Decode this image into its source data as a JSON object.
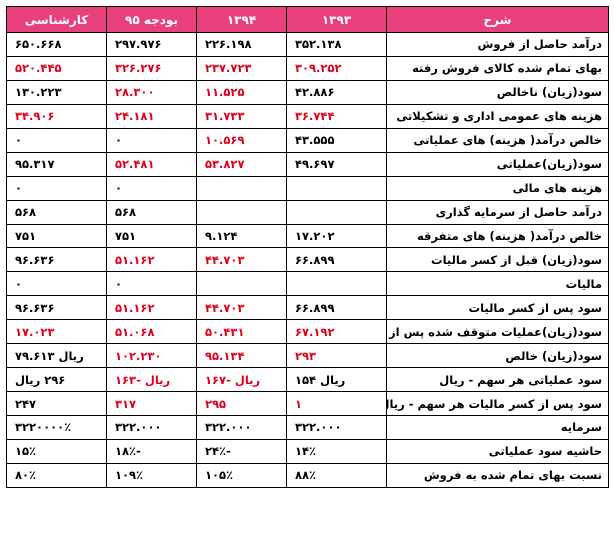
{
  "headers": [
    "شرح",
    "۱۳۹۳",
    "۱۳۹۴",
    "بودجه ۹۵",
    "کارشناسی"
  ],
  "rows": [
    {
      "label": "درآمد حاصل از فروش",
      "v1": "۳۵۲.۱۳۸",
      "v2": "۲۲۶.۱۹۸",
      "v3": "۲۹۷.۹۷۶",
      "v4": "۶۵۰.۶۶۸",
      "neg": [
        false,
        false,
        false,
        false
      ]
    },
    {
      "label": "بهای تمام شده کالای فروش رفته",
      "v1": "۳۰۹.۲۵۲",
      "v2": "۲۳۷.۷۲۳",
      "v3": "۳۲۶.۲۷۶",
      "v4": "۵۲۰.۴۴۵",
      "neg": [
        true,
        true,
        true,
        true
      ]
    },
    {
      "label": "سود(زیان) ناخالص",
      "v1": "۴۲.۸۸۶",
      "v2": "۱۱.۵۲۵",
      "v3": "۲۸.۳۰۰",
      "v4": "۱۳۰.۲۲۳",
      "neg": [
        false,
        true,
        true,
        false
      ]
    },
    {
      "label": "هزینه های عمومی اداری و تشکیلاتی",
      "v1": "۳۶.۷۴۴",
      "v2": "۳۱.۷۳۳",
      "v3": "۲۴.۱۸۱",
      "v4": "۳۴.۹۰۶",
      "neg": [
        true,
        true,
        true,
        true
      ]
    },
    {
      "label": "خالص درآمد( هزینه) های عملیاتی",
      "v1": "۴۳.۵۵۵",
      "v2": "۱۰.۵۶۹",
      "v3": "۰",
      "v4": "۰",
      "neg": [
        false,
        true,
        false,
        false
      ]
    },
    {
      "label": "سود(زیان)عملیاتی",
      "v1": "۴۹.۶۹۷",
      "v2": "۵۳.۸۲۷",
      "v3": "۵۲.۴۸۱",
      "v4": "۹۵.۳۱۷",
      "neg": [
        false,
        true,
        true,
        false
      ]
    },
    {
      "label": "هزینه های مالی",
      "v1": "",
      "v2": "",
      "v3": "۰",
      "v4": "۰",
      "neg": [
        false,
        false,
        false,
        false
      ]
    },
    {
      "label": "درآمد حاصل از سرمایه گذاری",
      "v1": "",
      "v2": "",
      "v3": "۵۶۸",
      "v4": "۵۶۸",
      "neg": [
        false,
        false,
        false,
        false
      ]
    },
    {
      "label": "خالص درآمد( هزینه) های متفرقه",
      "v1": "۱۷.۲۰۲",
      "v2": "۹.۱۲۴",
      "v3": "۷۵۱",
      "v4": "۷۵۱",
      "neg": [
        false,
        false,
        false,
        false
      ]
    },
    {
      "label": "سود(زیان) قبل از کسر مالیات",
      "v1": "۶۶.۸۹۹",
      "v2": "۴۴.۷۰۳",
      "v3": "۵۱.۱۶۲",
      "v4": "۹۶.۶۳۶",
      "neg": [
        false,
        true,
        true,
        false
      ]
    },
    {
      "label": "مالیات",
      "v1": "",
      "v2": "",
      "v3": "۰",
      "v4": "۰",
      "neg": [
        false,
        false,
        false,
        false
      ]
    },
    {
      "label": "سود پس از کسر مالیات",
      "v1": "۶۶.۸۹۹",
      "v2": "۴۴.۷۰۳",
      "v3": "۵۱.۱۶۲",
      "v4": "۹۶.۶۳۶",
      "neg": [
        false,
        true,
        true,
        false
      ]
    },
    {
      "label": "سود(زیان)عملیات متوقف شده پس از کسر مالیات",
      "v1": "۶۷.۱۹۲",
      "v2": "۵۰.۴۳۱",
      "v3": "۵۱.۰۶۸",
      "v4": "۱۷.۰۲۳",
      "neg": [
        true,
        true,
        true,
        true
      ]
    },
    {
      "label": "سود(زیان) خالص",
      "v1": "۲۹۳",
      "v2": "۹۵.۱۳۴",
      "v3": "۱۰۲.۲۳۰",
      "v4": "ریال ۷۹.۶۱۳",
      "neg": [
        true,
        true,
        true,
        false
      ]
    },
    {
      "label": "سود عملیاتی هر سهم - ریال",
      "v1": "ریال  ۱۵۴",
      "v2": "ریال  -۱۶۷",
      "v3": "ریال  -۱۶۳",
      "v4": "۲۹۶ ریال",
      "neg": [
        false,
        true,
        true,
        false
      ]
    },
    {
      "label": "سود پس از کسر مالیات هر سهم - ریال",
      "v1": "۱",
      "v2": "۲۹۵",
      "v3": "۳۱۷",
      "v4": "۲۴۷",
      "neg": [
        true,
        true,
        true,
        false
      ]
    },
    {
      "label": "سرمایه",
      "v1": "۳۲۲.۰۰۰",
      "v2": "۳۲۲.۰۰۰",
      "v3": "۳۲۲.۰۰۰",
      "v4": "۳۲۲۰۰۰۰٪",
      "neg": [
        false,
        false,
        false,
        false
      ]
    },
    {
      "label": "حاشیه سود عملیاتی",
      "v1": "۱۴٪",
      "v2": "-۲۴٪",
      "v3": "-۱۸٪",
      "v4": "۱۵٪",
      "neg": [
        false,
        false,
        false,
        false
      ]
    },
    {
      "label": "نسبت بهای تمام شده به فروش",
      "v1": "۸۸٪",
      "v2": "۱۰۵٪",
      "v3": "۱۰۹٪",
      "v4": "۸۰٪",
      "neg": [
        false,
        false,
        false,
        false
      ]
    }
  ]
}
